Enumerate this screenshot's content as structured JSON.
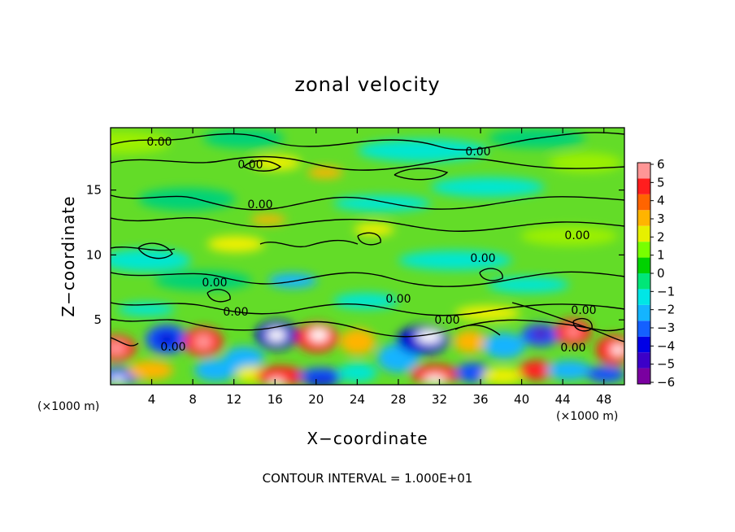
{
  "chart_data": {
    "type": "heatmap",
    "title": "zonal velocity",
    "xlabel": "X−coordinate",
    "ylabel": "Z−coordinate",
    "x_unit_left": "(×1000 m)",
    "x_unit_right": "(×1000 m)",
    "xlim": [
      0,
      50
    ],
    "ylim": [
      0,
      19.8
    ],
    "x_ticks": [
      4,
      8,
      12,
      16,
      20,
      24,
      28,
      32,
      36,
      40,
      44,
      48
    ],
    "y_ticks": [
      5,
      10,
      15
    ],
    "colorbar": {
      "min": -6,
      "max": 6,
      "ticks": [
        "6",
        "5",
        "4",
        "3",
        "2",
        "1",
        "0",
        "−1",
        "−2",
        "−3",
        "−4",
        "−5",
        "−6"
      ],
      "colors": [
        "#7a00a0",
        "#3c00c8",
        "#0000e6",
        "#1460ff",
        "#14b4ff",
        "#00e6e6",
        "#00e678",
        "#00d200",
        "#78ff00",
        "#e6f000",
        "#ffb400",
        "#ff6400",
        "#ff1e1e",
        "#ff9696"
      ]
    },
    "contour_label_text": "0.00",
    "contour_interval": "CONTOUR INTERVAL = 1.000E+01",
    "grid": false,
    "legend": "colorbar right"
  }
}
